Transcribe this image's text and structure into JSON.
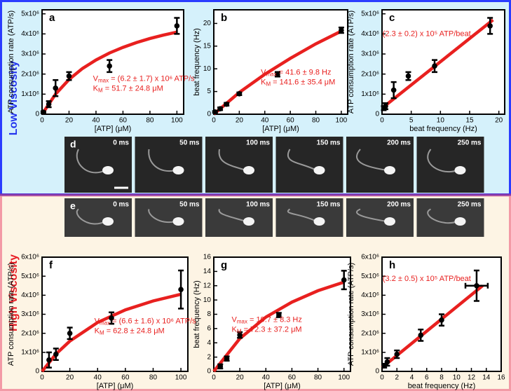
{
  "sections": [
    "Low Viscosity",
    "High Viscosity"
  ],
  "image_rows": [
    {
      "letter": "d",
      "frames": [
        "0 ms",
        "50 ms",
        "100 ms",
        "150 ms",
        "200 ms",
        "250 ms"
      ]
    },
    {
      "letter": "e",
      "frames": [
        "0 ms",
        "50 ms",
        "100 ms",
        "150 ms",
        "200 ms",
        "250 ms"
      ]
    }
  ],
  "chart_data": [
    {
      "type": "scatter",
      "letter": "a",
      "xlabel": "[ATP] (μM)",
      "ylabel": "ATP consumption rate (ATP/s)",
      "color": "#e8201f",
      "xlim": [
        0,
        105
      ],
      "ylim": [
        0,
        5200000
      ],
      "xticks": [
        0,
        20,
        40,
        60,
        80,
        100
      ],
      "yticks": [
        0,
        {
          "value": 1000000,
          "label": "1x10⁶"
        },
        {
          "value": 2000000,
          "label": "2x10⁶"
        },
        {
          "value": 3000000,
          "label": "3x10⁶"
        },
        {
          "value": 4000000,
          "label": "4x10⁶"
        },
        {
          "value": 5000000,
          "label": "5x10⁶"
        }
      ],
      "points": {
        "x": [
          1,
          5,
          10,
          20,
          50,
          100
        ],
        "values": [
          100000,
          500000,
          1300000,
          1900000,
          2400000,
          4400000
        ],
        "errors": [
          50000,
          150000,
          400000,
          200000,
          300000,
          400000
        ]
      },
      "fit": {
        "x": [
          0,
          10,
          20,
          30,
          40,
          50,
          60,
          70,
          80,
          90,
          100
        ],
        "values": [
          0,
          1000000,
          1730000,
          2280000,
          2700000,
          3050000,
          3330000,
          3570000,
          3770000,
          3940000,
          4090000
        ]
      },
      "annotations": [
        {
          "base": "V",
          "sub": "max",
          "text": " = (6.2 ± 1.7) x 10⁶ ATP/s"
        },
        {
          "base": "K",
          "sub": "M",
          "text": " = 51.7 ± 24.8 μM"
        }
      ]
    },
    {
      "type": "scatter",
      "letter": "b",
      "xlabel": "[ATP] (μM)",
      "ylabel": "beat frequency (Hz)",
      "color": "#e8201f",
      "xlim": [
        0,
        105
      ],
      "ylim": [
        0,
        23
      ],
      "xticks": [
        0,
        20,
        40,
        60,
        80,
        100
      ],
      "yticks": [
        0,
        5,
        10,
        15,
        20
      ],
      "points": {
        "x": [
          1,
          5,
          10,
          20,
          50,
          100
        ],
        "values": [
          0.5,
          1.2,
          2.2,
          4.5,
          8.8,
          18.5
        ],
        "errors": [
          0.2,
          0.3,
          0.3,
          0.3,
          0.5,
          0.6
        ]
      },
      "fit": {
        "x": [
          0,
          20,
          40,
          60,
          80,
          100
        ],
        "values": [
          0,
          4.8,
          8.8,
          12.3,
          15.5,
          18.3
        ]
      },
      "annotations": [
        {
          "base": "V",
          "sub": "max",
          "text": " = 41.6 ± 9.8 Hz"
        },
        {
          "base": "K",
          "sub": "M",
          "text": " = 141.6 ± 35.4 μM"
        }
      ]
    },
    {
      "type": "scatter",
      "letter": "c",
      "xlabel": "beat frequency (Hz)",
      "ylabel": "ATP consumption rate (ATP/s)",
      "color": "#e8201f",
      "xlim": [
        0,
        21
      ],
      "ylim": [
        0,
        5200000
      ],
      "xticks": [
        0,
        5,
        10,
        15,
        20
      ],
      "yticks": [
        0,
        {
          "value": 1000000,
          "label": "1x10⁶"
        },
        {
          "value": 2000000,
          "label": "2x10⁶"
        },
        {
          "value": 3000000,
          "label": "3x10⁶"
        },
        {
          "value": 4000000,
          "label": "4x10⁶"
        },
        {
          "value": 5000000,
          "label": "5x10⁶"
        }
      ],
      "points": {
        "x": [
          0.3,
          0.6,
          2,
          4.5,
          9,
          18.5
        ],
        "values": [
          300000,
          400000,
          1200000,
          1900000,
          2400000,
          4400000
        ],
        "errors": [
          100000,
          150000,
          400000,
          200000,
          300000,
          400000
        ]
      },
      "fit": {
        "x": [
          0,
          19
        ],
        "values": [
          300000,
          4700000
        ]
      },
      "annotations": [
        {
          "text": "(2.3 ± 0.2) x 10⁵ ATP/beat"
        }
      ]
    },
    {
      "type": "scatter",
      "letter": "f",
      "xlabel": "[ATP] (μM)",
      "ylabel": "ATP consumption rate (ATP/s)",
      "color": "#e8201f",
      "xlim": [
        0,
        105
      ],
      "ylim": [
        0,
        6000000
      ],
      "xticks": [
        0,
        20,
        40,
        60,
        80,
        100
      ],
      "yticks": [
        0,
        {
          "value": 1000000,
          "label": "1x10⁶"
        },
        {
          "value": 2000000,
          "label": "2x10⁶"
        },
        {
          "value": 3000000,
          "label": "3x10⁶"
        },
        {
          "value": 4000000,
          "label": "4x10⁶"
        },
        {
          "value": 5000000,
          "label": "5x10⁶"
        },
        {
          "value": 6000000,
          "label": "6x10⁶"
        }
      ],
      "points": {
        "x": [
          5,
          10,
          20,
          50,
          100
        ],
        "values": [
          600000,
          900000,
          2000000,
          2800000,
          4300000
        ],
        "errors": [
          400000,
          300000,
          300000,
          300000,
          1000000
        ]
      },
      "fit": {
        "x": [
          0,
          10,
          20,
          40,
          60,
          80,
          100
        ],
        "values": [
          0,
          910000,
          1590000,
          2570000,
          3230000,
          3700000,
          4050000
        ]
      },
      "annotations": [
        {
          "base": "V",
          "sub": "max",
          "text": " = (6.6 ± 1.6) x 10⁶ ATP/s"
        },
        {
          "base": "K",
          "sub": "M",
          "text": " = 62.8 ± 24.8 μM"
        }
      ]
    },
    {
      "type": "scatter",
      "letter": "g",
      "xlabel": "[ATP] (μM)",
      "ylabel": "beat frequency (Hz)",
      "color": "#e8201f",
      "xlim": [
        0,
        105
      ],
      "ylim": [
        0,
        16
      ],
      "xticks": [
        0,
        20,
        40,
        60,
        80,
        100
      ],
      "yticks": [
        0,
        2,
        4,
        6,
        8,
        10,
        12,
        14,
        16
      ],
      "points": {
        "x": [
          5,
          10,
          20,
          50,
          100
        ],
        "values": [
          0.7,
          1.8,
          5.1,
          7.9,
          12.8
        ],
        "errors": [
          0.3,
          0.3,
          0.4,
          0.3,
          1.3
        ]
      },
      "fit": {
        "x": [
          0,
          20,
          40,
          60,
          80,
          100
        ],
        "values": [
          0,
          4.6,
          7.6,
          9.7,
          11.3,
          12.5
        ]
      },
      "annotations": [
        {
          "base": "V",
          "sub": "max",
          "text": " = 19.7 ± 8.3 Hz"
        },
        {
          "base": "K",
          "sub": "M",
          "text": " = 72.3 ± 37.2 μM"
        }
      ]
    },
    {
      "type": "scatter",
      "letter": "h",
      "xlabel": "beat frequency (Hz)",
      "ylabel": "ATP consumption rate (ATP/s)",
      "color": "#e8201f",
      "xlim": [
        0,
        16
      ],
      "ylim": [
        0,
        6000000
      ],
      "xticks": [
        0,
        2,
        4,
        6,
        8,
        10,
        12,
        14,
        16
      ],
      "yticks": [
        0,
        {
          "value": 1000000,
          "label": "1x10⁶"
        },
        {
          "value": 2000000,
          "label": "2x10⁶"
        },
        {
          "value": 3000000,
          "label": "3x10⁶"
        },
        {
          "value": 4000000,
          "label": "4x10⁶"
        },
        {
          "value": 5000000,
          "label": "5x10⁶"
        },
        {
          "value": 6000000,
          "label": "6x10⁶"
        }
      ],
      "points": {
        "x": [
          0.3,
          0.7,
          2,
          5.2,
          8,
          12.7
        ],
        "values": [
          300000,
          500000,
          900000,
          1900000,
          2700000,
          4500000
        ],
        "errors": [
          100000,
          200000,
          200000,
          300000,
          300000,
          800000
        ],
        "xerrors": [
          null,
          null,
          null,
          null,
          null,
          1.5
        ]
      },
      "fit": {
        "x": [
          0,
          13.5
        ],
        "values": [
          200000,
          4500000
        ]
      },
      "annotations": [
        {
          "text": "(3.2 ± 0.5) x 10⁵ ATP/beat"
        }
      ]
    }
  ]
}
